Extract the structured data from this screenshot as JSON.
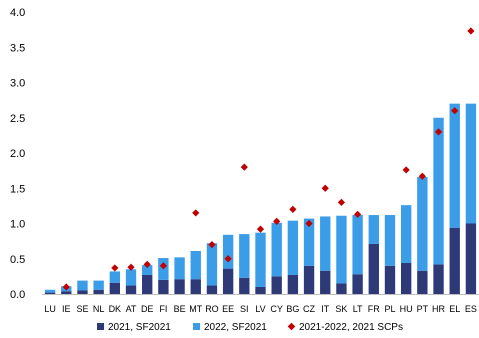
{
  "chart_data": {
    "type": "bar",
    "stacked": true,
    "categories": [
      "LU",
      "IE",
      "SE",
      "NL",
      "DK",
      "AT",
      "DE",
      "FI",
      "BE",
      "MT",
      "RO",
      "EE",
      "SI",
      "LV",
      "CY",
      "BG",
      "CZ",
      "IT",
      "SK",
      "LT",
      "FR",
      "PL",
      "HU",
      "PT",
      "HR",
      "EL",
      "ES"
    ],
    "series": [
      {
        "name": "2021, SF2021",
        "kind": "bar",
        "color": "#2e3a78",
        "values": [
          0.02,
          0.04,
          0.05,
          0.06,
          0.16,
          0.12,
          0.27,
          0.2,
          0.21,
          0.21,
          0.12,
          0.36,
          0.23,
          0.1,
          0.25,
          0.27,
          0.4,
          0.33,
          0.15,
          0.28,
          0.71,
          0.4,
          0.44,
          0.33,
          0.42,
          0.94,
          1.0
        ]
      },
      {
        "name": "2022, SF2021",
        "kind": "bar",
        "color": "#3b9ce8",
        "values": [
          0.04,
          0.07,
          0.14,
          0.13,
          0.16,
          0.23,
          0.14,
          0.31,
          0.31,
          0.4,
          0.6,
          0.48,
          0.62,
          0.77,
          0.76,
          0.77,
          0.67,
          0.77,
          0.96,
          0.84,
          0.41,
          0.72,
          0.82,
          1.33,
          2.08,
          1.76,
          1.7
        ]
      },
      {
        "name": "2021-2022, 2021 SCPs",
        "kind": "marker",
        "color": "#c00000",
        "values": [
          null,
          0.1,
          null,
          null,
          0.37,
          0.38,
          0.42,
          0.4,
          null,
          1.15,
          0.7,
          0.5,
          1.8,
          0.92,
          1.03,
          1.2,
          1.0,
          1.5,
          1.3,
          1.13,
          null,
          null,
          1.76,
          1.67,
          2.3,
          2.6,
          3.73
        ]
      }
    ],
    "ylim": [
      0,
      4.0
    ],
    "yticks": [
      "0.0",
      "0.5",
      "1.0",
      "1.5",
      "2.0",
      "2.5",
      "3.0",
      "3.5",
      "4.0"
    ],
    "grid": false,
    "legend_position": "bottom"
  }
}
